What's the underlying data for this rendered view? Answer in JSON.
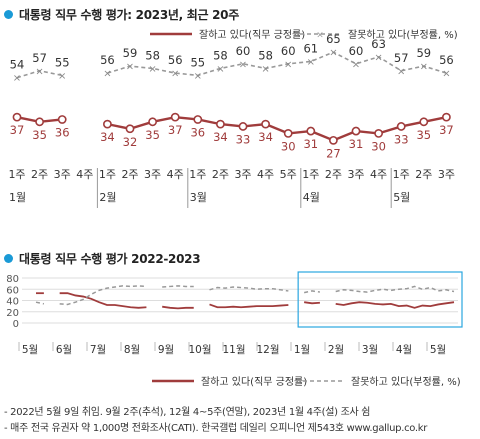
{
  "chart_data": [
    {
      "type": "line",
      "title": "대통령 직무 수행 평가: 2023년, 최근 20주",
      "x": [
        "1주",
        "2주",
        "3주",
        "4주",
        "1주",
        "2주",
        "3주",
        "4주",
        "1주",
        "2주",
        "3주",
        "4주",
        "5주",
        "1주",
        "2주",
        "3주",
        "4주",
        "1주",
        "2주",
        "3주"
      ],
      "months": [
        {
          "label": "1월",
          "at": 0
        },
        {
          "label": "2월",
          "at": 4
        },
        {
          "label": "3월",
          "at": 8
        },
        {
          "label": "4월",
          "at": 13
        },
        {
          "label": "5월",
          "at": 17
        }
      ],
      "segments": [
        [
          0,
          2
        ],
        [
          4,
          19
        ]
      ],
      "series": [
        {
          "name": "잘하고 있다(직무 긍정률)",
          "color": "#a03c3c",
          "style": "solid",
          "values": [
            37,
            35,
            36,
            null,
            34,
            32,
            35,
            37,
            36,
            34,
            33,
            34,
            30,
            31,
            27,
            31,
            30,
            33,
            35,
            37
          ]
        },
        {
          "name": "잘못하고 있다(부정률, %)",
          "color": "#999999",
          "style": "dashed",
          "values": [
            54,
            57,
            55,
            null,
            56,
            59,
            58,
            56,
            55,
            58,
            60,
            58,
            60,
            61,
            65,
            60,
            63,
            57,
            59,
            56
          ]
        }
      ],
      "legend_position": "top-right"
    },
    {
      "type": "line",
      "title": "대통령 직무 수행 평가 2022-2023",
      "ylim": [
        0,
        80
      ],
      "yticks": [
        0,
        20,
        40,
        60,
        80
      ],
      "xticks": [
        "5월",
        "6월",
        "7월",
        "8월",
        "9월",
        "10월",
        "11월",
        "12월",
        "1월",
        "2월",
        "3월",
        "4월",
        "5월"
      ],
      "series": [
        {
          "name": "잘하고 있다(직무 긍정률)",
          "color": "#a03c3c",
          "style": "solid",
          "segments": [
            [
              53,
              53
            ],
            null,
            [
              53,
              53,
              49,
              47,
              43,
              37,
              32,
              32,
              30,
              28,
              27,
              28
            ],
            null,
            [
              29,
              27,
              26,
              27,
              27
            ],
            null,
            [
              33,
              28,
              28,
              29,
              28,
              29,
              30,
              30,
              30,
              31,
              32
            ],
            null,
            [
              37,
              35,
              36
            ],
            null,
            [
              34,
              32,
              35,
              37,
              36,
              34,
              33,
              34,
              30,
              31,
              27,
              31,
              30,
              33,
              35,
              37
            ]
          ]
        },
        {
          "name": "잘못하고 있다(부정률, %)",
          "color": "#999999",
          "style": "dashed",
          "segments": [
            [
              37,
              34
            ],
            null,
            [
              34,
              33,
              37,
              42,
              51,
              58,
              62,
              64,
              66,
              65,
              66,
              65
            ],
            null,
            [
              64,
              65,
              66,
              65,
              65
            ],
            null,
            [
              59,
              63,
              62,
              64,
              63,
              62,
              60,
              61,
              61,
              59,
              57
            ],
            null,
            [
              54,
              57,
              55
            ],
            null,
            [
              56,
              59,
              58,
              56,
              55,
              58,
              60,
              58,
              60,
              61,
              65,
              60,
              63,
              57,
              59,
              56
            ]
          ]
        }
      ],
      "highlight_box": "recent 20 weeks",
      "legend_position": "bottom"
    }
  ],
  "legend": {
    "positive": "잘하고 있다(직무 긍정률)",
    "negative": "잘못하고 있다(부정률, %)"
  },
  "footnotes": [
    "- 2022년 5월 9일 취임. 9월 2주(추석), 12월 4~5주(연말), 2023년 1월 4주(설) 조사 쉼",
    "- 매주 전국 유권자 약 1,000명 전화조사(CATI). 한국갤럽 데일리 오피니언 제543호 www.gallup.co.kr"
  ]
}
